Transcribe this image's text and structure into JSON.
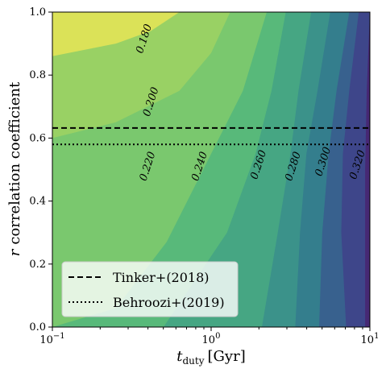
{
  "chart_data": {
    "type": "contour",
    "title": "",
    "xlabel_main": "t",
    "xlabel_sub": "duty",
    "xlabel_unit": "[Gyr]",
    "ylabel_var": "r",
    "ylabel_text": "correlation coefficient",
    "x_scale": "log",
    "xlim": [
      0.1,
      10
    ],
    "ylim": [
      0.0,
      1.0
    ],
    "x_ticks": [
      {
        "value": 0.1,
        "base": "10",
        "exp": "−1"
      },
      {
        "value": 1,
        "base": "10",
        "exp": "0"
      },
      {
        "value": 10,
        "base": "10",
        "exp": "1"
      }
    ],
    "y_ticks": [
      "0.0",
      "0.2",
      "0.4",
      "0.6",
      "0.8",
      "1.0"
    ],
    "levels": [
      0.18,
      0.2,
      0.22,
      0.24,
      0.26,
      0.28,
      0.3,
      0.32
    ],
    "contour_labels": [
      {
        "text": "0.180",
        "x": 0.38,
        "y": 0.915
      },
      {
        "text": "0.200",
        "x": 0.42,
        "y": 0.715
      },
      {
        "text": "0.220",
        "x": 0.4,
        "y": 0.51
      },
      {
        "text": "0.240",
        "x": 0.85,
        "y": 0.51
      },
      {
        "text": "0.260",
        "x": 2.0,
        "y": 0.515
      },
      {
        "text": "0.280",
        "x": 3.3,
        "y": 0.51
      },
      {
        "text": "0.300",
        "x": 5.1,
        "y": 0.525
      },
      {
        "text": "0.320",
        "x": 8.4,
        "y": 0.515
      }
    ],
    "hlines": [
      {
        "name": "Tinker+(2018)",
        "y": 0.632,
        "style": "dashed"
      },
      {
        "name": "Behroozi+(2019)",
        "y": 0.58,
        "style": "dotted"
      }
    ],
    "legend": {
      "placement": "lower-left",
      "entries": [
        "Tinker+(2018)",
        "Behroozi+(2019)"
      ]
    },
    "colormap": "viridis",
    "band_colors": [
      "#dbe258",
      "#99d164",
      "#7ac86e",
      "#58b97a",
      "#46a683",
      "#3b928a",
      "#347e8d",
      "#38618e",
      "#3e468a",
      "#462874"
    ]
  }
}
